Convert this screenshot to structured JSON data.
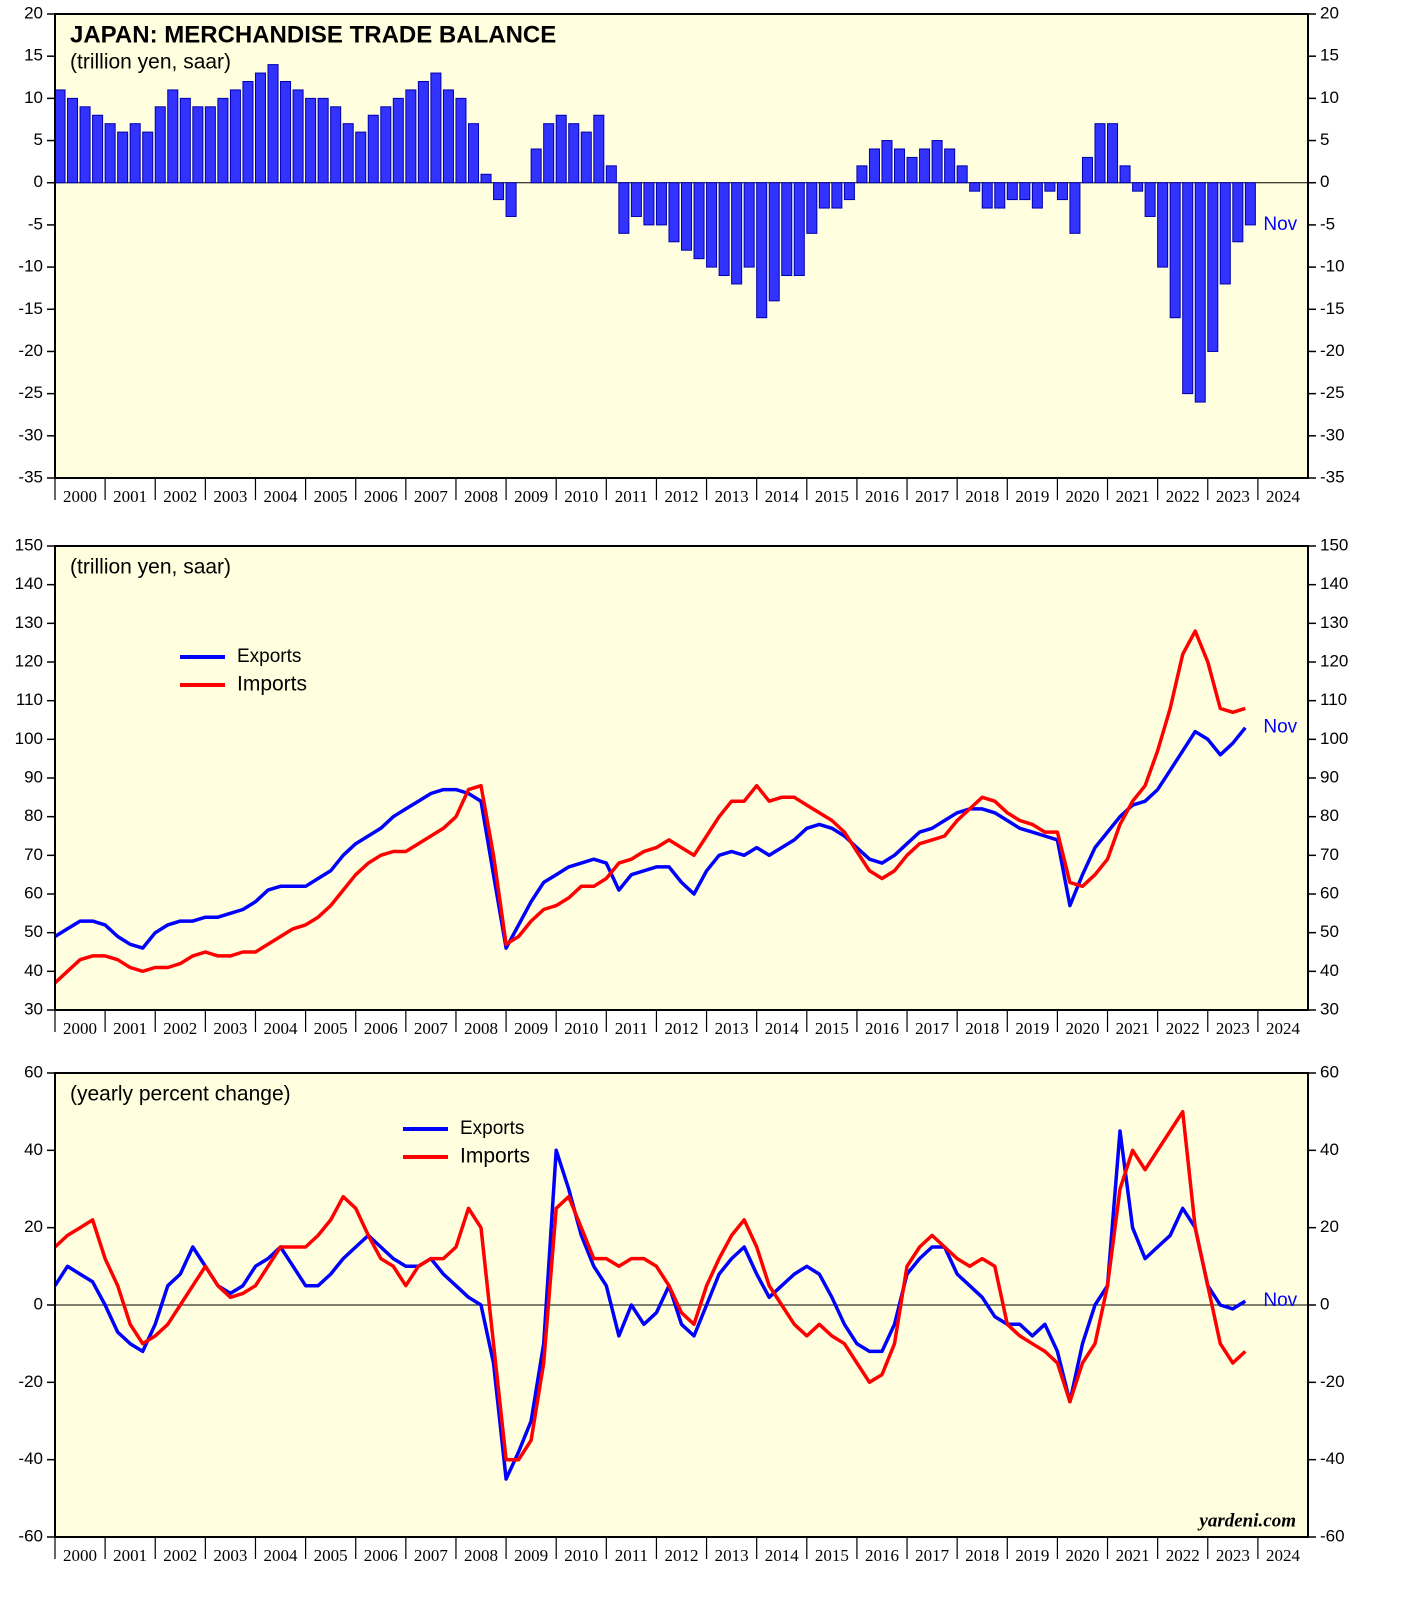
{
  "source": "yardeni.com",
  "chart_data": [
    {
      "type": "bar",
      "title": "JAPAN: MERCHANDISE TRADE BALANCE",
      "subtitle": "(trillion yen, saar)",
      "annotation": "Nov",
      "color": "#3333ff",
      "xlim": [
        2000,
        2025
      ],
      "ylim": [
        -35,
        20
      ],
      "yticks": [
        -35,
        -30,
        -25,
        -20,
        -15,
        -10,
        -5,
        0,
        5,
        10,
        15,
        20
      ],
      "xticks": [
        2000,
        2001,
        2002,
        2003,
        2004,
        2005,
        2006,
        2007,
        2008,
        2009,
        2010,
        2011,
        2012,
        2013,
        2014,
        2015,
        2016,
        2017,
        2018,
        2019,
        2020,
        2021,
        2022,
        2023,
        2024
      ],
      "x": [
        2000,
        2000.25,
        2000.5,
        2000.75,
        2001,
        2001.25,
        2001.5,
        2001.75,
        2002,
        2002.25,
        2002.5,
        2002.75,
        2003,
        2003.25,
        2003.5,
        2003.75,
        2004,
        2004.25,
        2004.5,
        2004.75,
        2005,
        2005.25,
        2005.5,
        2005.75,
        2006,
        2006.25,
        2006.5,
        2006.75,
        2007,
        2007.25,
        2007.5,
        2007.75,
        2008,
        2008.25,
        2008.5,
        2008.75,
        2009,
        2009.25,
        2009.5,
        2009.75,
        2010,
        2010.25,
        2010.5,
        2010.75,
        2011,
        2011.25,
        2011.5,
        2011.75,
        2012,
        2012.25,
        2012.5,
        2012.75,
        2013,
        2013.25,
        2013.5,
        2013.75,
        2014,
        2014.25,
        2014.5,
        2014.75,
        2015,
        2015.25,
        2015.5,
        2015.75,
        2016,
        2016.25,
        2016.5,
        2016.75,
        2017,
        2017.25,
        2017.5,
        2017.75,
        2018,
        2018.25,
        2018.5,
        2018.75,
        2019,
        2019.25,
        2019.5,
        2019.75,
        2020,
        2020.25,
        2020.5,
        2020.75,
        2021,
        2021.25,
        2021.5,
        2021.75,
        2022,
        2022.25,
        2022.5,
        2022.75,
        2023,
        2023.25,
        2023.5,
        2023.75
      ],
      "values": [
        11,
        10,
        9,
        8,
        7,
        6,
        7,
        6,
        9,
        11,
        10,
        9,
        9,
        10,
        11,
        12,
        13,
        14,
        12,
        11,
        10,
        10,
        9,
        7,
        6,
        8,
        9,
        10,
        11,
        12,
        13,
        11,
        10,
        7,
        1,
        -2,
        -4,
        0,
        4,
        7,
        8,
        7,
        6,
        8,
        2,
        -6,
        -4,
        -5,
        -5,
        -7,
        -8,
        -9,
        -10,
        -11,
        -12,
        -10,
        -16,
        -14,
        -11,
        -11,
        -6,
        -3,
        -3,
        -2,
        2,
        4,
        5,
        4,
        3,
        4,
        5,
        4,
        2,
        -1,
        -3,
        -3,
        -2,
        -2,
        -3,
        -1,
        -2,
        -6,
        3,
        7,
        7,
        2,
        -1,
        -4,
        -10,
        -16,
        -25,
        -26,
        -20,
        -12,
        -7,
        -5
      ]
    },
    {
      "type": "line",
      "subtitle": "(trillion yen, saar)",
      "annotation": "Nov",
      "xlim": [
        2000,
        2025
      ],
      "ylim": [
        30,
        150
      ],
      "yticks": [
        30,
        40,
        50,
        60,
        70,
        80,
        90,
        100,
        110,
        120,
        130,
        140,
        150
      ],
      "xticks": [
        2000,
        2001,
        2002,
        2003,
        2004,
        2005,
        2006,
        2007,
        2008,
        2009,
        2010,
        2011,
        2012,
        2013,
        2014,
        2015,
        2016,
        2017,
        2018,
        2019,
        2020,
        2021,
        2022,
        2023,
        2024
      ],
      "x": [
        2000,
        2000.25,
        2000.5,
        2000.75,
        2001,
        2001.25,
        2001.5,
        2001.75,
        2002,
        2002.25,
        2002.5,
        2002.75,
        2003,
        2003.25,
        2003.5,
        2003.75,
        2004,
        2004.25,
        2004.5,
        2004.75,
        2005,
        2005.25,
        2005.5,
        2005.75,
        2006,
        2006.25,
        2006.5,
        2006.75,
        2007,
        2007.25,
        2007.5,
        2007.75,
        2008,
        2008.25,
        2008.5,
        2008.75,
        2009,
        2009.25,
        2009.5,
        2009.75,
        2010,
        2010.25,
        2010.5,
        2010.75,
        2011,
        2011.25,
        2011.5,
        2011.75,
        2012,
        2012.25,
        2012.5,
        2012.75,
        2013,
        2013.25,
        2013.5,
        2013.75,
        2014,
        2014.25,
        2014.5,
        2014.75,
        2015,
        2015.25,
        2015.5,
        2015.75,
        2016,
        2016.25,
        2016.5,
        2016.75,
        2017,
        2017.25,
        2017.5,
        2017.75,
        2018,
        2018.25,
        2018.5,
        2018.75,
        2019,
        2019.25,
        2019.5,
        2019.75,
        2020,
        2020.25,
        2020.5,
        2020.75,
        2021,
        2021.25,
        2021.5,
        2021.75,
        2022,
        2022.25,
        2022.5,
        2022.75,
        2023,
        2023.25,
        2023.5,
        2023.75
      ],
      "series": [
        {
          "name": "Exports",
          "color": "#0000ff",
          "values": [
            49,
            51,
            53,
            53,
            52,
            49,
            47,
            46,
            50,
            52,
            53,
            53,
            54,
            54,
            55,
            56,
            58,
            61,
            62,
            62,
            62,
            64,
            66,
            70,
            73,
            75,
            77,
            80,
            82,
            84,
            86,
            87,
            87,
            86,
            84,
            65,
            46,
            52,
            58,
            63,
            65,
            67,
            68,
            69,
            68,
            61,
            65,
            66,
            67,
            67,
            63,
            60,
            66,
            70,
            71,
            70,
            72,
            70,
            72,
            74,
            77,
            78,
            77,
            75,
            72,
            69,
            68,
            70,
            73,
            76,
            77,
            79,
            81,
            82,
            82,
            81,
            79,
            77,
            76,
            75,
            74,
            57,
            65,
            72,
            76,
            80,
            83,
            84,
            87,
            92,
            97,
            102,
            100,
            96,
            99,
            103
          ]
        },
        {
          "name": "Imports",
          "color": "#ff0000",
          "values": [
            37,
            40,
            43,
            44,
            44,
            43,
            41,
            40,
            41,
            41,
            42,
            44,
            45,
            44,
            44,
            45,
            45,
            47,
            49,
            51,
            52,
            54,
            57,
            61,
            65,
            68,
            70,
            71,
            71,
            73,
            75,
            77,
            80,
            87,
            88,
            70,
            47,
            49,
            53,
            56,
            57,
            59,
            62,
            62,
            64,
            68,
            69,
            71,
            72,
            74,
            72,
            70,
            75,
            80,
            84,
            84,
            88,
            84,
            85,
            85,
            83,
            81,
            79,
            76,
            71,
            66,
            64,
            66,
            70,
            73,
            74,
            75,
            79,
            82,
            85,
            84,
            81,
            79,
            78,
            76,
            76,
            63,
            62,
            65,
            69,
            78,
            84,
            88,
            97,
            108,
            122,
            128,
            120,
            108,
            107,
            108
          ]
        }
      ]
    },
    {
      "type": "line",
      "subtitle": "(yearly percent change)",
      "annotation": "Nov",
      "xlim": [
        2000,
        2025
      ],
      "ylim": [
        -60,
        60
      ],
      "yticks": [
        -60,
        -40,
        -20,
        0,
        20,
        40,
        60
      ],
      "xticks": [
        2000,
        2001,
        2002,
        2003,
        2004,
        2005,
        2006,
        2007,
        2008,
        2009,
        2010,
        2011,
        2012,
        2013,
        2014,
        2015,
        2016,
        2017,
        2018,
        2019,
        2020,
        2021,
        2022,
        2023,
        2024
      ],
      "x": [
        2000,
        2000.25,
        2000.5,
        2000.75,
        2001,
        2001.25,
        2001.5,
        2001.75,
        2002,
        2002.25,
        2002.5,
        2002.75,
        2003,
        2003.25,
        2003.5,
        2003.75,
        2004,
        2004.25,
        2004.5,
        2004.75,
        2005,
        2005.25,
        2005.5,
        2005.75,
        2006,
        2006.25,
        2006.5,
        2006.75,
        2007,
        2007.25,
        2007.5,
        2007.75,
        2008,
        2008.25,
        2008.5,
        2008.75,
        2009,
        2009.25,
        2009.5,
        2009.75,
        2010,
        2010.25,
        2010.5,
        2010.75,
        2011,
        2011.25,
        2011.5,
        2011.75,
        2012,
        2012.25,
        2012.5,
        2012.75,
        2013,
        2013.25,
        2013.5,
        2013.75,
        2014,
        2014.25,
        2014.5,
        2014.75,
        2015,
        2015.25,
        2015.5,
        2015.75,
        2016,
        2016.25,
        2016.5,
        2016.75,
        2017,
        2017.25,
        2017.5,
        2017.75,
        2018,
        2018.25,
        2018.5,
        2018.75,
        2019,
        2019.25,
        2019.5,
        2019.75,
        2020,
        2020.25,
        2020.5,
        2020.75,
        2021,
        2021.25,
        2021.5,
        2021.75,
        2022,
        2022.25,
        2022.5,
        2022.75,
        2023,
        2023.25,
        2023.5,
        2023.75
      ],
      "series": [
        {
          "name": "Exports",
          "color": "#0000ff",
          "values": [
            5,
            10,
            8,
            6,
            0,
            -7,
            -10,
            -12,
            -5,
            5,
            8,
            15,
            10,
            5,
            3,
            5,
            10,
            12,
            15,
            10,
            5,
            5,
            8,
            12,
            15,
            18,
            15,
            12,
            10,
            10,
            12,
            8,
            5,
            2,
            0,
            -15,
            -45,
            -38,
            -30,
            -10,
            40,
            30,
            18,
            10,
            5,
            -8,
            0,
            -5,
            -2,
            5,
            -5,
            -8,
            0,
            8,
            12,
            15,
            8,
            2,
            5,
            8,
            10,
            8,
            2,
            -5,
            -10,
            -12,
            -12,
            -5,
            8,
            12,
            15,
            15,
            8,
            5,
            2,
            -3,
            -5,
            -5,
            -8,
            -5,
            -12,
            -25,
            -10,
            0,
            5,
            45,
            20,
            12,
            15,
            18,
            25,
            20,
            5,
            0,
            -1,
            1
          ]
        },
        {
          "name": "Imports",
          "color": "#ff0000",
          "values": [
            15,
            18,
            20,
            22,
            12,
            5,
            -5,
            -10,
            -8,
            -5,
            0,
            5,
            10,
            5,
            2,
            3,
            5,
            10,
            15,
            15,
            15,
            18,
            22,
            28,
            25,
            18,
            12,
            10,
            5,
            10,
            12,
            12,
            15,
            25,
            20,
            -10,
            -40,
            -40,
            -35,
            -15,
            25,
            28,
            20,
            12,
            12,
            10,
            12,
            12,
            10,
            5,
            -2,
            -5,
            5,
            12,
            18,
            22,
            15,
            5,
            0,
            -5,
            -8,
            -5,
            -8,
            -10,
            -15,
            -20,
            -18,
            -10,
            10,
            15,
            18,
            15,
            12,
            10,
            12,
            10,
            -5,
            -8,
            -10,
            -12,
            -15,
            -25,
            -15,
            -10,
            5,
            30,
            40,
            35,
            40,
            45,
            50,
            20,
            5,
            -10,
            -15,
            -12
          ]
        }
      ]
    }
  ]
}
